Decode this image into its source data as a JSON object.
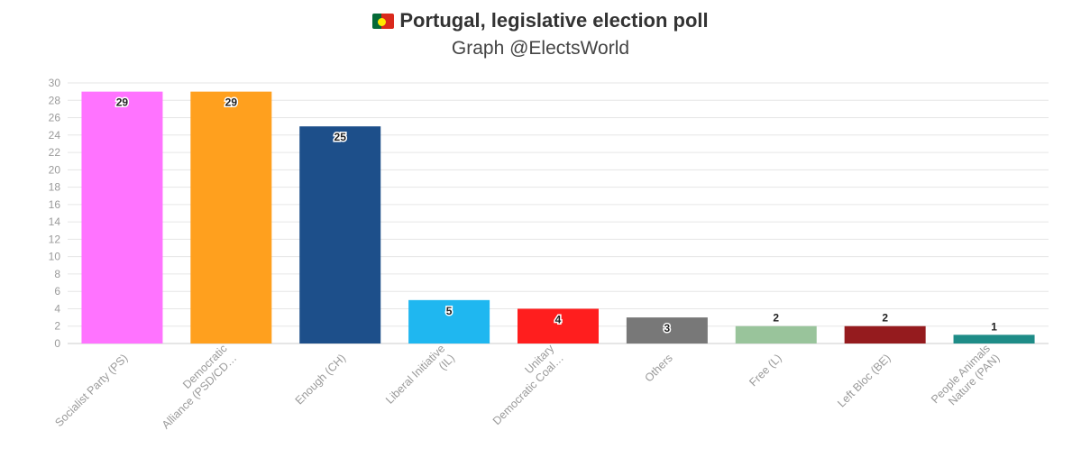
{
  "header": {
    "title": "Portugal, legislative election poll",
    "subtitle": "Graph @ElectsWorld"
  },
  "chart_data": {
    "type": "bar",
    "title": "Portugal, legislative election poll",
    "subtitle": "Graph @ElectsWorld",
    "xlabel": "",
    "ylabel": "",
    "ylim": [
      0,
      30
    ],
    "yticks": [
      0,
      2,
      4,
      6,
      8,
      10,
      12,
      14,
      16,
      18,
      20,
      22,
      24,
      26,
      28,
      30
    ],
    "grid": true,
    "legend": "none",
    "categories": [
      "Socialist Party (PS)",
      "Democratic Alliance (PSD/CD…",
      "Enough (CH)",
      "Liberal Initiative (IL)",
      "Unitary Democratic Coal…",
      "Others",
      "Free (L)",
      "Left Bloc (BE)",
      "People Animals Nature (PAN)"
    ],
    "category_lines": [
      [
        "Socialist Party (PS)"
      ],
      [
        "Democratic",
        "Alliance (PSD/CD…"
      ],
      [
        "Enough (CH)"
      ],
      [
        "Liberal Initiative",
        "(IL)"
      ],
      [
        "Unitary",
        "Democratic Coal…"
      ],
      [
        "Others"
      ],
      [
        "Free (L)"
      ],
      [
        "Left Bloc (BE)"
      ],
      [
        "People Animals",
        "Nature (PAN)"
      ]
    ],
    "values": [
      29,
      29,
      25,
      5,
      4,
      3,
      2,
      2,
      1
    ],
    "colors": [
      "#ff73ff",
      "#ffa01e",
      "#1d4f8a",
      "#1fb7f0",
      "#ff1e1e",
      "#787878",
      "#99c49b",
      "#951b1e",
      "#1e8c87"
    ],
    "label_inside": [
      true,
      true,
      true,
      true,
      true,
      true,
      false,
      false,
      false
    ]
  }
}
